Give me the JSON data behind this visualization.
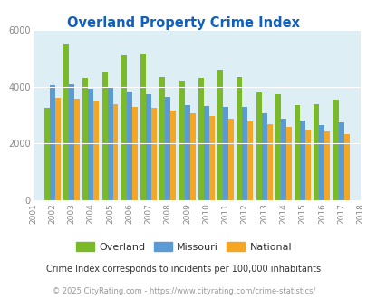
{
  "title": "Overland Property Crime Index",
  "overland_vals": [
    3250,
    5500,
    4300,
    4500,
    5100,
    5150,
    4350,
    4200,
    4300,
    4600,
    4350,
    3800,
    3750,
    3350,
    3400,
    3550
  ],
  "missouri_vals": [
    4050,
    4100,
    3920,
    3970,
    3820,
    3750,
    3650,
    3350,
    3330,
    3280,
    3280,
    3080,
    2870,
    2820,
    2640,
    2750
  ],
  "national_vals": [
    3620,
    3560,
    3480,
    3380,
    3290,
    3260,
    3160,
    3050,
    2960,
    2870,
    2790,
    2680,
    2590,
    2490,
    2420,
    2330
  ],
  "data_years": [
    2002,
    2003,
    2004,
    2005,
    2006,
    2007,
    2008,
    2009,
    2010,
    2011,
    2012,
    2013,
    2014,
    2015,
    2016,
    2017
  ],
  "all_tick_years": [
    2001,
    2002,
    2003,
    2004,
    2005,
    2006,
    2007,
    2008,
    2009,
    2010,
    2011,
    2012,
    2013,
    2014,
    2015,
    2016,
    2017,
    2018
  ],
  "overland_color": "#7aba28",
  "missouri_color": "#5b9bd5",
  "national_color": "#f5a623",
  "plot_bg": "#ddeef5",
  "title_color": "#1060c0",
  "ylim": [
    0,
    6000
  ],
  "subtitle": "Crime Index corresponds to incidents per 100,000 inhabitants",
  "footer": "© 2025 CityRating.com - https://www.cityrating.com/crime-statistics/",
  "subtitle_color": "#333333",
  "footer_color": "#999999",
  "legend_labels": [
    "Overland",
    "Missouri",
    "National"
  ]
}
